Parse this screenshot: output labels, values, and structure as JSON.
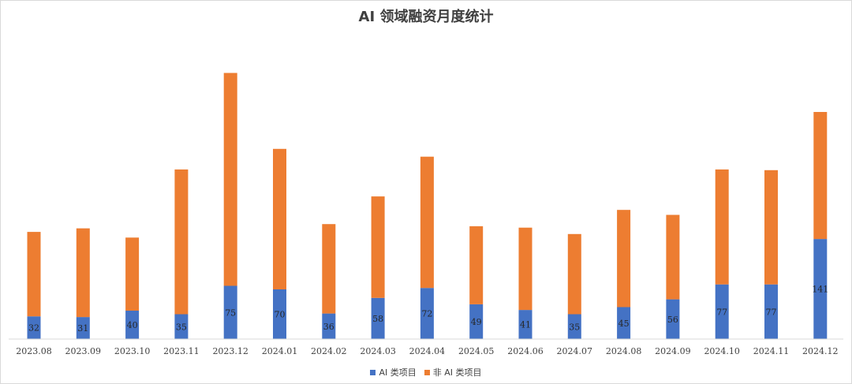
{
  "chart_data": {
    "type": "bar",
    "stacked": true,
    "title": "AI 领域融资月度统计",
    "categories": [
      "2023.08",
      "2023.09",
      "2023.10",
      "2023.11",
      "2023.12",
      "2024.01",
      "2024.02",
      "2024.03",
      "2024.04",
      "2024.05",
      "2024.06",
      "2024.07",
      "2024.08",
      "2024.09",
      "2024.10",
      "2024.11",
      "2024.12"
    ],
    "series": [
      {
        "name": "AI 类项目",
        "color": "#4472C4",
        "values": [
          32,
          31,
          40,
          35,
          75,
          70,
          36,
          58,
          72,
          49,
          41,
          35,
          45,
          56,
          77,
          77,
          141
        ]
      },
      {
        "name": "非 AI 类项目",
        "color": "#ED7D31",
        "values": [
          119,
          125,
          103,
          204,
          300,
          198,
          126,
          143,
          185,
          110,
          116,
          113,
          137,
          119,
          162,
          161,
          179
        ]
      }
    ],
    "ylim": [
      0,
      400
    ],
    "grid": false,
    "legend": "bottom",
    "data_labels_series": "AI 类项目"
  }
}
